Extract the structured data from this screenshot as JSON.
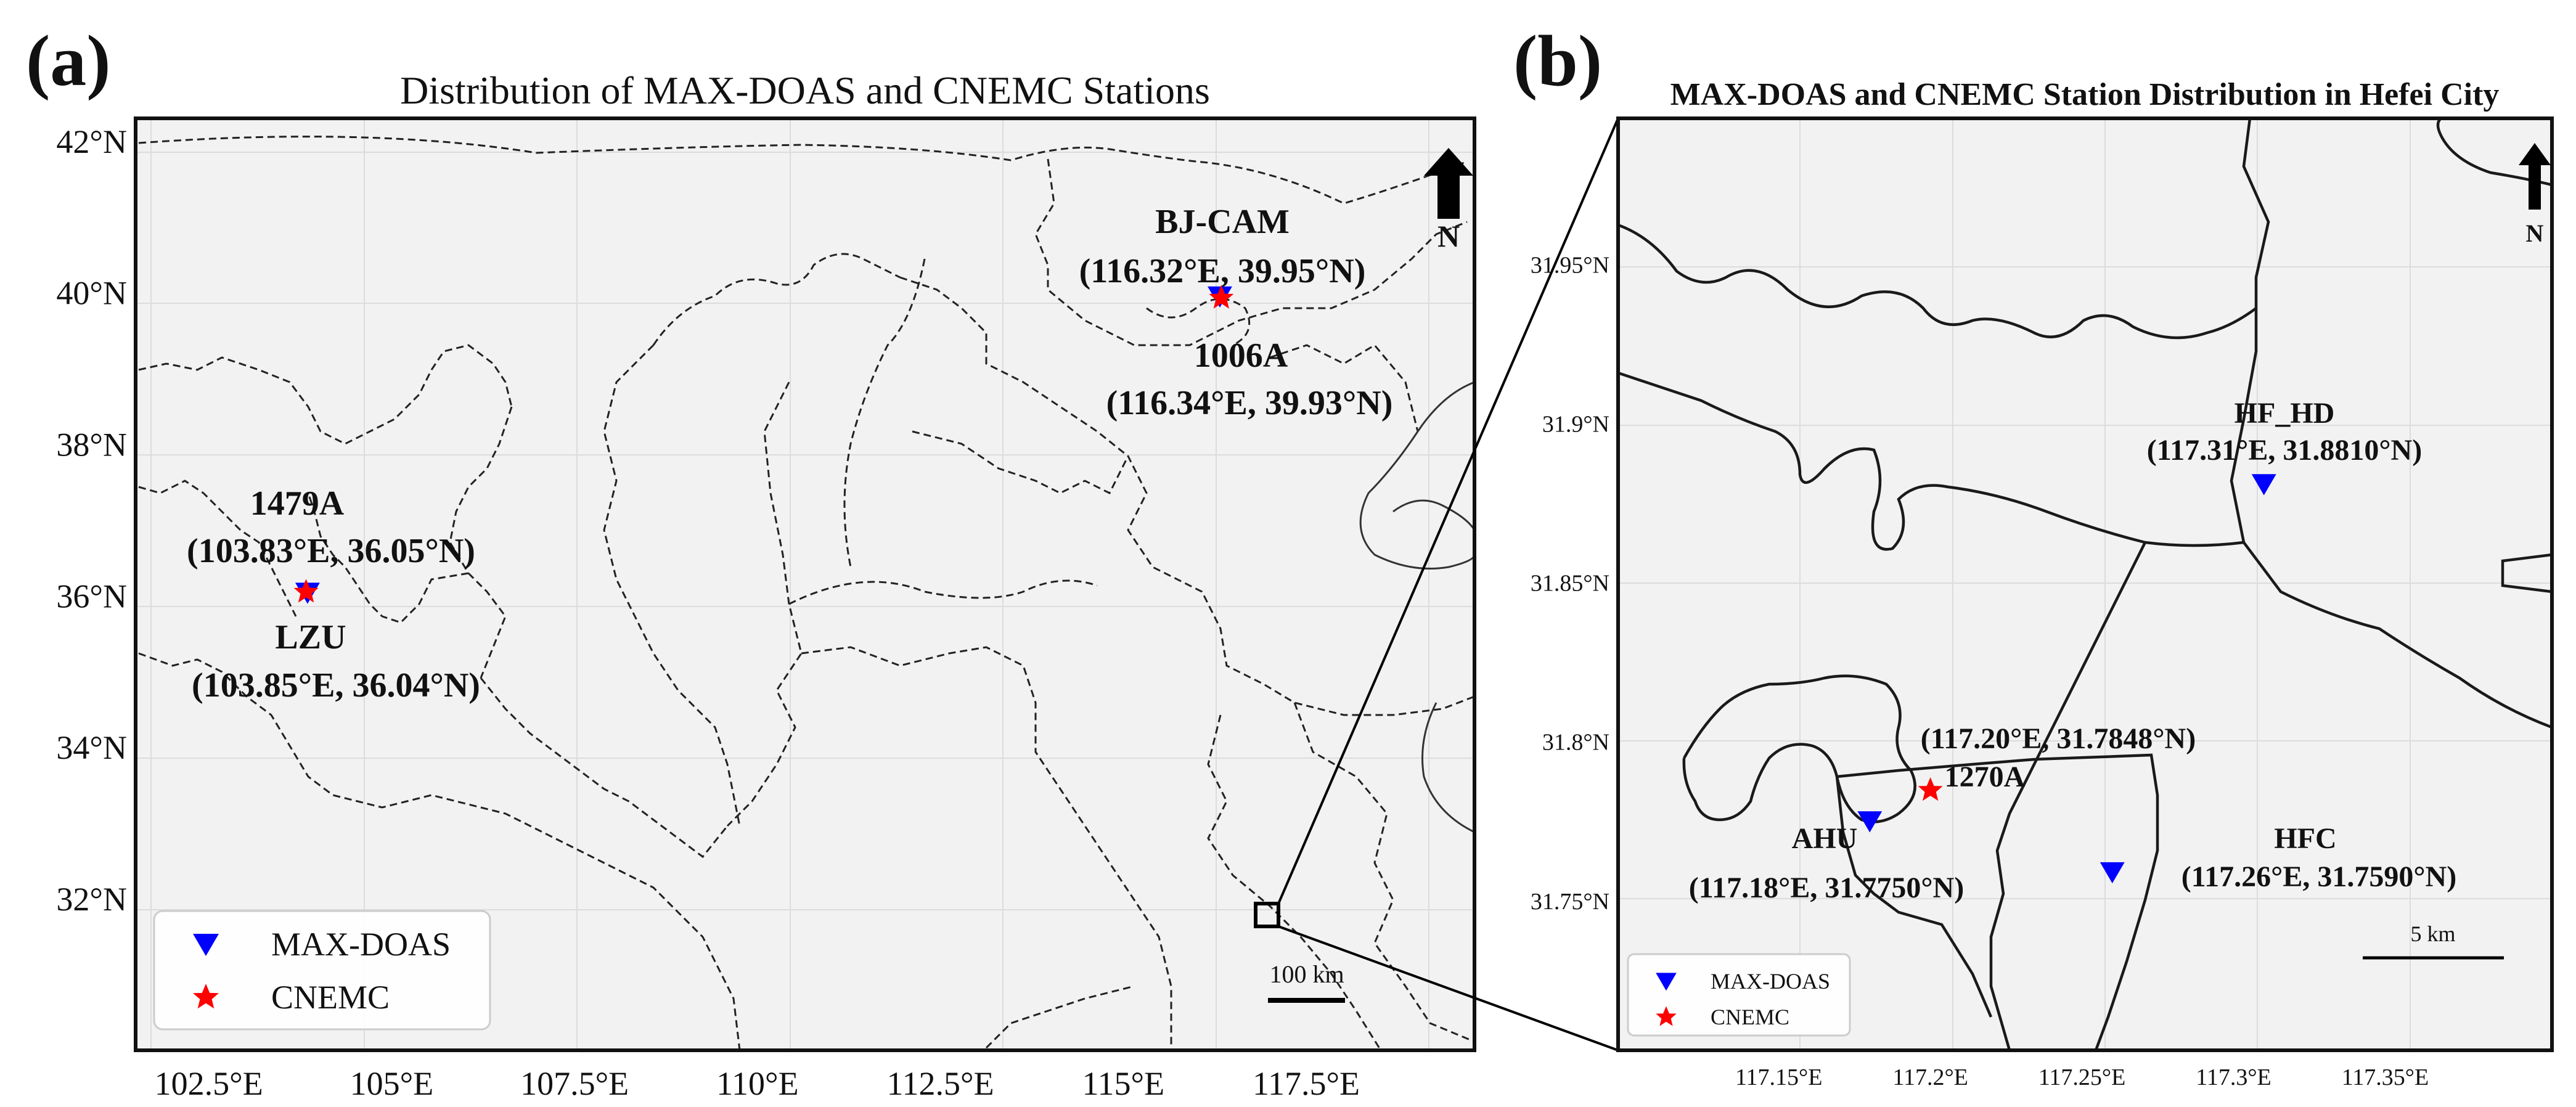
{
  "panel_a": {
    "letter": "(a)",
    "title": "Distribution of MAX-DOAS and CNEMC Stations",
    "lon_ticks": [
      "102.5°E",
      "105°E",
      "107.5°E",
      "110°E",
      "112.5°E",
      "115°E",
      "117.5°E"
    ],
    "lat_ticks": [
      "42°N",
      "40°N",
      "38°N",
      "36°N",
      "34°N",
      "32°N"
    ],
    "extent": {
      "lon": [
        101.5,
        119.8
      ],
      "lat": [
        30.0,
        42.3
      ]
    },
    "stations": [
      {
        "id": "BJ-CAM",
        "type": "MAX-DOAS",
        "lon": 116.32,
        "lat": 39.95,
        "name": "BJ-CAM",
        "coord": "(116.32°E, 39.95°N)"
      },
      {
        "id": "1006A",
        "type": "CNEMC",
        "lon": 116.34,
        "lat": 39.93,
        "name": "1006A",
        "coord": "(116.34°E, 39.93°N)"
      },
      {
        "id": "1479A",
        "type": "CNEMC",
        "lon": 103.83,
        "lat": 36.05,
        "name": "1479A",
        "coord": "(103.83°E, 36.05°N)"
      },
      {
        "id": "LZU",
        "type": "MAX-DOAS",
        "lon": 103.85,
        "lat": 36.04,
        "name": "LZU",
        "coord": "(103.85°E, 36.04°N)"
      }
    ],
    "legend": [
      {
        "symbol": "MAX-DOAS",
        "label": "MAX-DOAS",
        "color": "#0000ff"
      },
      {
        "symbol": "CNEMC",
        "label": "CNEMC",
        "color": "#ff0000"
      }
    ],
    "scale_bar": "100 km",
    "north": "N"
  },
  "panel_b": {
    "letter": "(b)",
    "title": "MAX-DOAS and CNEMC Station Distribution in Hefei City",
    "lon_ticks": [
      "117.15°E",
      "117.2°E",
      "117.25°E",
      "117.3°E",
      "117.35°E"
    ],
    "lat_ticks": [
      "31.95°N",
      "31.9°N",
      "31.85°N",
      "31.8°N",
      "31.75°N"
    ],
    "extent": {
      "lon": [
        117.097,
        117.405
      ],
      "lat": [
        31.703,
        31.996
      ]
    },
    "stations": [
      {
        "id": "HF_HD",
        "type": "MAX-DOAS",
        "lon": 117.31,
        "lat": 31.881,
        "name": "HF_HD",
        "coord": "(117.31°E, 31.8810°N)"
      },
      {
        "id": "1270A",
        "type": "CNEMC",
        "lon": 117.2,
        "lat": 31.7848,
        "name": "1270A",
        "coord": "(117.20°E, 31.7848°N)"
      },
      {
        "id": "AHU",
        "type": "MAX-DOAS",
        "lon": 117.18,
        "lat": 31.775,
        "name": "AHU",
        "coord": "(117.18°E, 31.7750°N)"
      },
      {
        "id": "HFC",
        "type": "MAX-DOAS",
        "lon": 117.26,
        "lat": 31.759,
        "name": "HFC",
        "coord": "(117.26°E, 31.7590°N)"
      }
    ],
    "legend": [
      {
        "symbol": "MAX-DOAS",
        "label": "MAX-DOAS",
        "color": "#0000ff"
      },
      {
        "symbol": "CNEMC",
        "label": "CNEMC",
        "color": "#ff0000"
      }
    ],
    "scale_bar": "5 km",
    "north": "N"
  },
  "colors": {
    "max_doas": "#0000ff",
    "cnemc": "#ff0000",
    "land": "#f2f2f2",
    "frame": "#111111"
  }
}
